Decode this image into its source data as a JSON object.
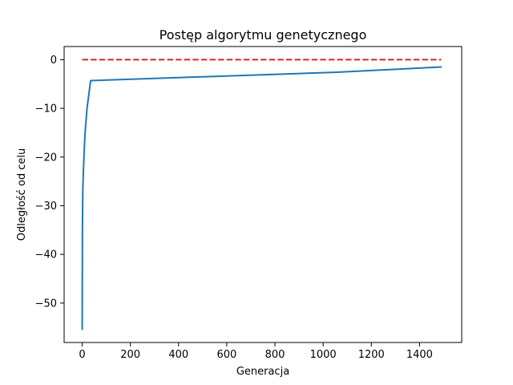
{
  "chart_data": {
    "type": "line",
    "title": "Postęp algorytmu genetycznego",
    "xlabel": "Generacja",
    "ylabel": "Odległość od celu",
    "xlim": [
      -75,
      1575
    ],
    "ylim": [
      -58.1,
      2.7
    ],
    "x_ticks": [
      0,
      200,
      400,
      600,
      800,
      1000,
      1200,
      1400
    ],
    "y_ticks": [
      0,
      -10,
      -20,
      -30,
      -40,
      -50
    ],
    "x_tick_labels": [
      "0",
      "200",
      "400",
      "600",
      "800",
      "1000",
      "1200",
      "1400"
    ],
    "y_tick_labels": [
      "0",
      "−10",
      "−20",
      "−30",
      "−40",
      "−50"
    ],
    "grid": false,
    "series": [
      {
        "color": "#1f77b4",
        "style": "solid",
        "x": [
          0,
          1,
          2,
          3,
          5,
          8,
          12,
          20,
          35,
          1050,
          1490
        ],
        "y": [
          -55.4,
          -35.0,
          -29.0,
          -26.0,
          -23.0,
          -19.0,
          -15.0,
          -10.0,
          -4.3,
          -2.6,
          -1.5
        ]
      },
      {
        "color": "#d62728",
        "style": "dashed",
        "x": [
          0,
          1490
        ],
        "y": [
          0,
          0
        ]
      }
    ]
  }
}
